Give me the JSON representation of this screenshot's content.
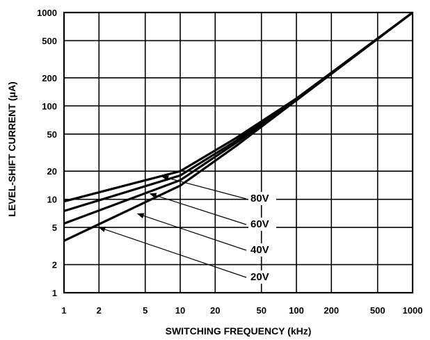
{
  "chart_data": {
    "type": "line",
    "xlabel": "SWITCHING FREQUENCY (kHz)",
    "ylabel": "LEVEL-SHIFT CURRENT (μA)",
    "x_scale": "log",
    "y_scale": "log",
    "xlim": [
      1,
      1000
    ],
    "ylim": [
      1,
      1000
    ],
    "x_ticks": [
      1,
      2,
      5,
      10,
      20,
      50,
      100,
      200,
      500,
      1000
    ],
    "x_tick_labels": [
      "1",
      "2",
      "5",
      "10",
      "20",
      "50",
      "100",
      "200",
      "500",
      "1000"
    ],
    "y_ticks": [
      1,
      2,
      5,
      10,
      20,
      50,
      100,
      200,
      500,
      1000
    ],
    "y_tick_labels": [
      "1",
      "2",
      "5",
      "10",
      "20",
      "50",
      "100",
      "200",
      "500",
      "1000"
    ],
    "grid": true,
    "series": [
      {
        "name": "80V",
        "x": [
          1,
          10,
          30,
          100,
          1000
        ],
        "y": [
          9.5,
          20,
          45,
          120,
          1000
        ]
      },
      {
        "name": "60V",
        "x": [
          1,
          10,
          30,
          100,
          1000
        ],
        "y": [
          7.5,
          18,
          42,
          118,
          1000
        ]
      },
      {
        "name": "40V",
        "x": [
          1,
          10,
          30,
          100,
          1000
        ],
        "y": [
          5.5,
          16,
          40,
          117,
          1000
        ]
      },
      {
        "name": "20V",
        "x": [
          1,
          10,
          30,
          100,
          1000
        ],
        "y": [
          3.6,
          14,
          37,
          115,
          1000
        ]
      }
    ],
    "annotations": [
      {
        "text": "80V",
        "target_x": 7,
        "target_y": 17.5
      },
      {
        "text": "60V",
        "target_x": 5.5,
        "target_y": 11.5
      },
      {
        "text": "40V",
        "target_x": 4.3,
        "target_y": 7
      },
      {
        "text": "20V",
        "target_x": 2,
        "target_y": 5
      }
    ],
    "colors": {
      "line": "#000000",
      "grid": "#000000",
      "background": "#ffffff"
    }
  }
}
